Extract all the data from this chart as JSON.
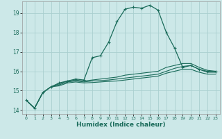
{
  "xlabel": "Humidex (Indice chaleur)",
  "background_color": "#cce8e8",
  "grid_color": "#aacfcf",
  "line_color": "#1a6b5a",
  "xlim": [
    -0.5,
    23.5
  ],
  "ylim": [
    13.8,
    19.6
  ],
  "yticks": [
    14,
    15,
    16,
    17,
    18,
    19
  ],
  "xticks": [
    0,
    1,
    2,
    3,
    4,
    5,
    6,
    7,
    8,
    9,
    10,
    11,
    12,
    13,
    14,
    15,
    16,
    17,
    18,
    19,
    20,
    21,
    22,
    23
  ],
  "series": [
    [
      14.5,
      14.1,
      14.9,
      15.2,
      15.4,
      15.5,
      15.6,
      15.55,
      16.7,
      16.8,
      17.5,
      18.55,
      19.2,
      19.3,
      19.25,
      19.4,
      19.15,
      18.0,
      17.2,
      16.2,
      16.3,
      16.1,
      16.0,
      16.0
    ],
    [
      14.5,
      14.1,
      14.9,
      15.2,
      15.35,
      15.5,
      15.55,
      15.5,
      15.55,
      15.6,
      15.65,
      15.7,
      15.8,
      15.85,
      15.9,
      15.95,
      16.0,
      16.2,
      16.3,
      16.4,
      16.4,
      16.2,
      16.05,
      16.0
    ],
    [
      14.5,
      14.1,
      14.9,
      15.2,
      15.3,
      15.45,
      15.5,
      15.45,
      15.5,
      15.52,
      15.55,
      15.6,
      15.65,
      15.7,
      15.75,
      15.8,
      15.85,
      16.0,
      16.15,
      16.25,
      16.3,
      16.1,
      15.95,
      15.95
    ],
    [
      14.5,
      14.1,
      14.9,
      15.2,
      15.25,
      15.4,
      15.45,
      15.4,
      15.42,
      15.45,
      15.48,
      15.5,
      15.55,
      15.6,
      15.65,
      15.7,
      15.75,
      15.9,
      16.0,
      16.1,
      16.1,
      15.95,
      15.85,
      15.85
    ]
  ]
}
